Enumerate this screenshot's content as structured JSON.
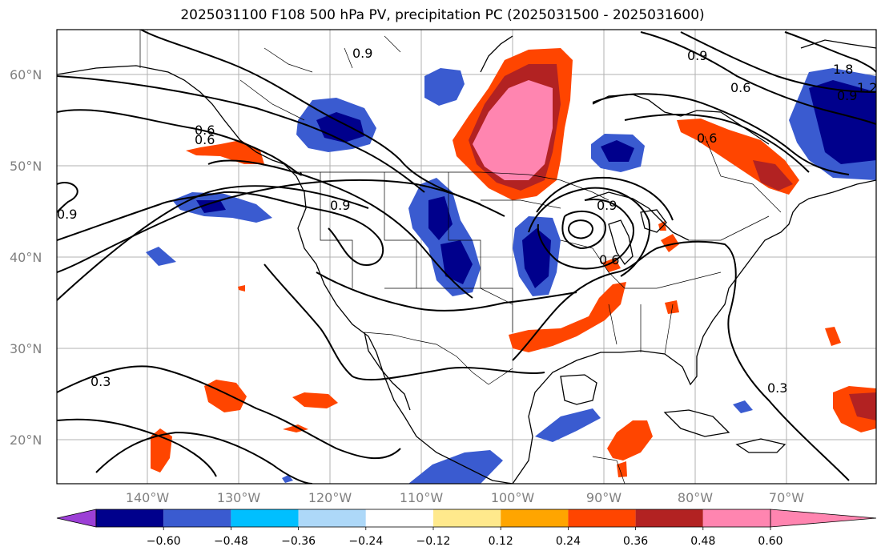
{
  "title": "2025031100 F108 500 hPa PV, precipitation PC (2025031500 - 2025031600)",
  "lat_labels": [
    "60°N",
    "50°N",
    "40°N",
    "30°N",
    "20°N"
  ],
  "lon_labels": [
    "140°W",
    "130°W",
    "120°W",
    "110°W",
    "100°W",
    "90°W",
    "80°W",
    "70°W"
  ],
  "contour_labels": [
    "0.9",
    "0.6",
    "0.6",
    "0.9",
    "0.9",
    "0.9",
    "0.6",
    "0.3",
    "0.3",
    "0.6",
    "0.9",
    "0.6",
    "0.9",
    "1.8",
    "1.2"
  ],
  "colorbar": {
    "ticks": [
      "−0.60",
      "−0.48",
      "−0.36",
      "−0.24",
      "−0.12",
      "0.12",
      "0.24",
      "0.36",
      "0.48",
      "0.60"
    ],
    "colors": [
      "#9c3fd6",
      "#00008c",
      "#3a5bd0",
      "#00bfff",
      "#add8f8",
      "#ffffff",
      "#ffe98c",
      "#ffa500",
      "#ff4500",
      "#b22222",
      "#ff85b0"
    ]
  }
}
